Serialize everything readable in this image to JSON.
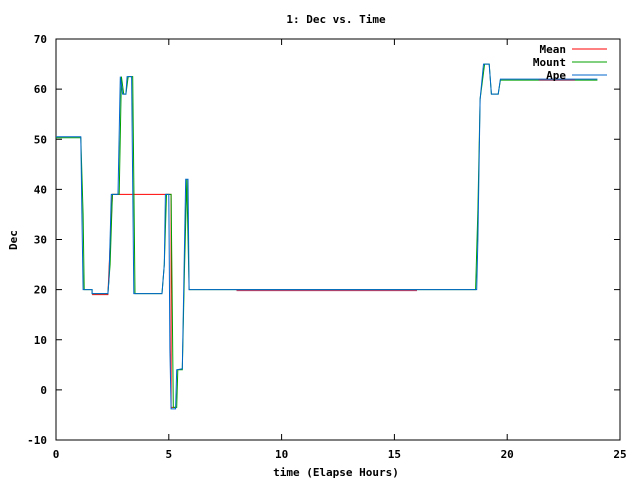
{
  "chart_data": {
    "type": "line",
    "title": "1: Dec vs. Time",
    "xlabel": "time (Elapse Hours)",
    "ylabel": "Dec",
    "xlim": [
      0,
      25
    ],
    "ylim": [
      -10,
      70
    ],
    "x_ticks": [
      "0",
      "5",
      "10",
      "15",
      "20",
      "25"
    ],
    "y_ticks": [
      "-10",
      "0",
      "10",
      "20",
      "30",
      "40",
      "50",
      "60",
      "70"
    ],
    "grid": false,
    "legend_position": "top-right",
    "series": [
      {
        "name": "Mean",
        "color": "#ff0000",
        "points": [
          [
            1.6,
            19.0
          ],
          [
            2.3,
            19.0
          ],
          [
            2.5,
            39.0
          ],
          [
            2.8,
            39.0
          ],
          [
            4.9,
            39.0
          ],
          [
            5.1,
            39.0
          ],
          [
            5.1,
            -3.5
          ],
          [
            5.3,
            -3.5
          ]
        ]
      },
      {
        "name": "Mount",
        "color": "#00a000",
        "points": [
          [
            0,
            50.3
          ],
          [
            1.1,
            50.3
          ],
          [
            1.2,
            35
          ],
          [
            1.25,
            20
          ],
          [
            1.6,
            20
          ],
          [
            1.6,
            19.2
          ],
          [
            2.3,
            19.2
          ],
          [
            2.4,
            25
          ],
          [
            2.5,
            39
          ],
          [
            2.8,
            39
          ],
          [
            2.9,
            62.5
          ],
          [
            3.0,
            59
          ],
          [
            3.1,
            59
          ],
          [
            3.2,
            62.5
          ],
          [
            3.4,
            62.5
          ],
          [
            3.5,
            19.2
          ],
          [
            4.7,
            19.2
          ],
          [
            4.8,
            25
          ],
          [
            4.9,
            39
          ],
          [
            5.1,
            39
          ],
          [
            5.2,
            -3.5
          ],
          [
            5.35,
            -3.5
          ],
          [
            5.4,
            4
          ],
          [
            5.6,
            4
          ],
          [
            5.7,
            25
          ],
          [
            5.8,
            42
          ],
          [
            5.9,
            20
          ],
          [
            8.0,
            20
          ],
          [
            16.0,
            20
          ],
          [
            18.6,
            20
          ],
          [
            18.7,
            36
          ],
          [
            18.8,
            58
          ],
          [
            19.0,
            65
          ],
          [
            19.2,
            65
          ],
          [
            19.3,
            59
          ],
          [
            19.6,
            59
          ],
          [
            19.7,
            61.8
          ],
          [
            24.0,
            61.8
          ]
        ]
      },
      {
        "name": "Ape",
        "color": "#0066cc",
        "points": [
          [
            0,
            50.5
          ],
          [
            1.1,
            50.5
          ],
          [
            1.15,
            35
          ],
          [
            1.2,
            20
          ],
          [
            1.6,
            20
          ],
          [
            1.6,
            19.2
          ],
          [
            2.3,
            19.2
          ],
          [
            2.35,
            22
          ],
          [
            2.45,
            39
          ],
          [
            2.75,
            39
          ],
          [
            2.85,
            62.5
          ],
          [
            2.95,
            59
          ],
          [
            3.1,
            59
          ],
          [
            3.15,
            62.5
          ],
          [
            3.35,
            62.5
          ],
          [
            3.45,
            19.2
          ],
          [
            4.7,
            19.2
          ],
          [
            4.8,
            25
          ],
          [
            4.85,
            39
          ],
          [
            5.0,
            39
          ],
          [
            5.05,
            8
          ],
          [
            5.1,
            -3.8
          ],
          [
            5.3,
            -3.8
          ],
          [
            5.35,
            4
          ],
          [
            5.6,
            4.2
          ],
          [
            5.7,
            30
          ],
          [
            5.75,
            42
          ],
          [
            5.85,
            42
          ],
          [
            5.9,
            20
          ],
          [
            8.0,
            20
          ],
          [
            16.0,
            20
          ],
          [
            18.65,
            20
          ],
          [
            18.7,
            30
          ],
          [
            18.8,
            58
          ],
          [
            18.95,
            65
          ],
          [
            19.2,
            65
          ],
          [
            19.3,
            59
          ],
          [
            19.6,
            59
          ],
          [
            19.7,
            62
          ],
          [
            22.0,
            62
          ],
          [
            24.0,
            62
          ]
        ]
      }
    ],
    "overlay_segments": [
      {
        "series": "Mean",
        "color": "#b03060",
        "points": [
          [
            8.0,
            19.8
          ],
          [
            16.0,
            19.8
          ]
        ]
      },
      {
        "series": "Mean",
        "color": "#a0306a",
        "points": [
          [
            21.4,
            61.8
          ],
          [
            23.0,
            61.8
          ]
        ]
      }
    ]
  }
}
